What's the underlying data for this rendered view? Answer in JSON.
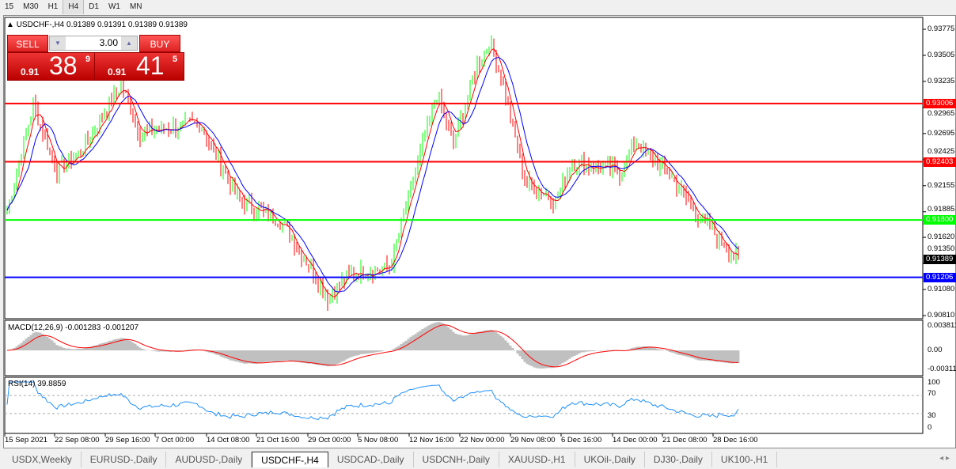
{
  "timeframes": [
    "15",
    "M30",
    "H1",
    "H4",
    "D1",
    "W1",
    "MN"
  ],
  "active_timeframe": "H4",
  "chart_title": "USDCHF-,H4  0.91389 0.91391 0.91389 0.91389",
  "trade": {
    "sell_label": "SELL",
    "buy_label": "BUY",
    "lot": "3.00",
    "sell_prefix": "0.91",
    "sell_big": "38",
    "sell_sup": "9",
    "buy_prefix": "0.91",
    "buy_big": "41",
    "buy_sup": "5"
  },
  "price_axis": [
    "0.93775",
    "0.93505",
    "0.93235",
    "0.92965",
    "0.92695",
    "0.92425",
    "0.92155",
    "0.91885",
    "0.91620",
    "0.91350",
    "0.91080",
    "0.90810"
  ],
  "price_range": [
    0.9081,
    0.93775
  ],
  "levels": [
    {
      "price": "0.93006",
      "color": "#ff0000"
    },
    {
      "price": "0.92403",
      "color": "#ff0000"
    },
    {
      "price": "0.91800",
      "color": "#00ff00"
    },
    {
      "price": "0.91206",
      "color": "#0000ff"
    }
  ],
  "current_price": "0.91389",
  "price_path": [
    [
      0,
      0.919
    ],
    [
      11,
      0.93
    ],
    [
      21,
      0.923
    ],
    [
      31,
      0.925
    ],
    [
      48,
      0.932
    ],
    [
      56,
      0.927
    ],
    [
      81,
      0.928
    ],
    [
      98,
      0.92
    ],
    [
      115,
      0.918
    ],
    [
      128,
      0.913
    ],
    [
      135,
      0.91
    ],
    [
      145,
      0.9125
    ],
    [
      161,
      0.913
    ],
    [
      171,
      0.922
    ],
    [
      181,
      0.931
    ],
    [
      188,
      0.926
    ],
    [
      198,
      0.934
    ],
    [
      203,
      0.9365
    ],
    [
      208,
      0.933
    ],
    [
      218,
      0.922
    ],
    [
      231,
      0.92
    ],
    [
      238,
      0.924
    ],
    [
      258,
      0.923
    ],
    [
      265,
      0.926
    ],
    [
      278,
      0.923
    ],
    [
      291,
      0.9185
    ],
    [
      308,
      0.9139
    ]
  ],
  "macd": {
    "label": "MACD(12,26,9) -0.001283 -0.001207",
    "axis": [
      "0.003811",
      "0.00",
      "-0.00311"
    ]
  },
  "rsi": {
    "label": "RSI(14) 39.8859",
    "axis": [
      "100",
      "70",
      "30",
      "0"
    ]
  },
  "time_axis": [
    "15 Sep 2021",
    "22 Sep 08:00",
    "29 Sep 16:00",
    "7 Oct 00:00",
    "14 Oct 08:00",
    "21 Oct 16:00",
    "29 Oct 00:00",
    "5 Nov 08:00",
    "12 Nov 16:00",
    "22 Nov 00:00",
    "29 Nov 08:00",
    "6 Dec 16:00",
    "14 Dec 00:00",
    "21 Dec 08:00",
    "28 Dec 16:00"
  ],
  "tabs": [
    "USDX,Weekly",
    "EURUSD-,Daily",
    "AUDUSD-,Daily",
    "USDCHF-,H4",
    "USDCAD-,Daily",
    "USDCNH-,Daily",
    "XAUUSD-,H1",
    "UKOil-,Daily",
    "DJ30-,Daily",
    "UK100-,H1"
  ],
  "active_tab": "USDCHF-,H4",
  "colors": {
    "bull": "#00ff00",
    "bear": "#ff0000",
    "ma_fast": "#ff0000",
    "ma_slow": "#0000ff",
    "rsi": "#1e90ff",
    "macd_hist": "#c0c0c0"
  }
}
